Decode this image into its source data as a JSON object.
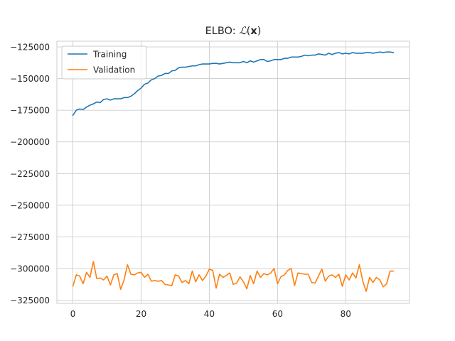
{
  "chart_data": {
    "type": "line",
    "title": "ELBO: ℒ(x)",
    "title_parts": {
      "prefix": "ELBO: ",
      "script": "ℒ",
      "open": "(",
      "bold": "x",
      "close": ")"
    },
    "xlabel": "",
    "ylabel": "",
    "xlim": [
      -4.7,
      98.7
    ],
    "ylim": [
      -327500,
      -120500
    ],
    "xticks": [
      0,
      20,
      40,
      60,
      80
    ],
    "yticks": [
      -325000,
      -300000,
      -275000,
      -250000,
      -225000,
      -200000,
      -175000,
      -150000,
      -125000
    ],
    "xtick_labels": [
      "0",
      "20",
      "40",
      "60",
      "80"
    ],
    "ytick_labels": [
      "−325000",
      "−300000",
      "−275000",
      "−250000",
      "−225000",
      "−200000",
      "−175000",
      "−150000",
      "−125000"
    ],
    "grid": true,
    "legend": "top-left",
    "series": [
      {
        "name": "Training",
        "color": "#1f77b4",
        "values": [
          -179000,
          -175000,
          -174000,
          -174500,
          -172500,
          -171000,
          -170000,
          -168500,
          -169000,
          -166500,
          -166000,
          -167000,
          -166000,
          -166000,
          -166000,
          -165000,
          -165000,
          -164000,
          -162000,
          -159500,
          -157500,
          -154500,
          -153500,
          -151000,
          -150000,
          -148000,
          -147500,
          -146000,
          -146000,
          -144000,
          -143500,
          -141500,
          -141000,
          -141000,
          -140500,
          -140000,
          -140000,
          -139000,
          -138500,
          -138500,
          -138500,
          -138000,
          -138000,
          -138500,
          -138000,
          -137500,
          -137000,
          -137500,
          -137500,
          -137500,
          -136500,
          -137500,
          -136000,
          -137000,
          -136000,
          -135000,
          -135000,
          -136500,
          -136000,
          -135000,
          -135000,
          -135000,
          -134000,
          -134000,
          -133000,
          -133000,
          -133000,
          -132500,
          -131500,
          -132000,
          -131500,
          -131500,
          -130500,
          -131000,
          -131500,
          -130000,
          -131000,
          -130000,
          -129500,
          -130500,
          -130000,
          -130500,
          -129500,
          -130000,
          -130000,
          -130000,
          -129500,
          -129500,
          -130000,
          -129500,
          -129000,
          -129500,
          -129000,
          -129000,
          -129500
        ]
      },
      {
        "name": "Validation",
        "color": "#ff7f0e",
        "values": [
          -314000,
          -305000,
          -306000,
          -312000,
          -303000,
          -307000,
          -294500,
          -308000,
          -307500,
          -309000,
          -306000,
          -313000,
          -305000,
          -304000,
          -316500,
          -309000,
          -297000,
          -304500,
          -305000,
          -303500,
          -303000,
          -307000,
          -304500,
          -310000,
          -309500,
          -310000,
          -309500,
          -312500,
          -313000,
          -313500,
          -305000,
          -306000,
          -311000,
          -309500,
          -312000,
          -302000,
          -310500,
          -305000,
          -309500,
          -306000,
          -300500,
          -301500,
          -315500,
          -304500,
          -307000,
          -305500,
          -303500,
          -312500,
          -311500,
          -306500,
          -310500,
          -316000,
          -305500,
          -312000,
          -302000,
          -307000,
          -304000,
          -305000,
          -303500,
          -300000,
          -312000,
          -306500,
          -305000,
          -301500,
          -300000,
          -313500,
          -303500,
          -304000,
          -304500,
          -304500,
          -311000,
          -311500,
          -306000,
          -300500,
          -310000,
          -306000,
          -305000,
          -307000,
          -304500,
          -314000,
          -305000,
          -309000,
          -303500,
          -307500,
          -297000,
          -310000,
          -318000,
          -307000,
          -311000,
          -307000,
          -309000,
          -314500,
          -312000,
          -302000,
          -302000
        ]
      }
    ]
  }
}
